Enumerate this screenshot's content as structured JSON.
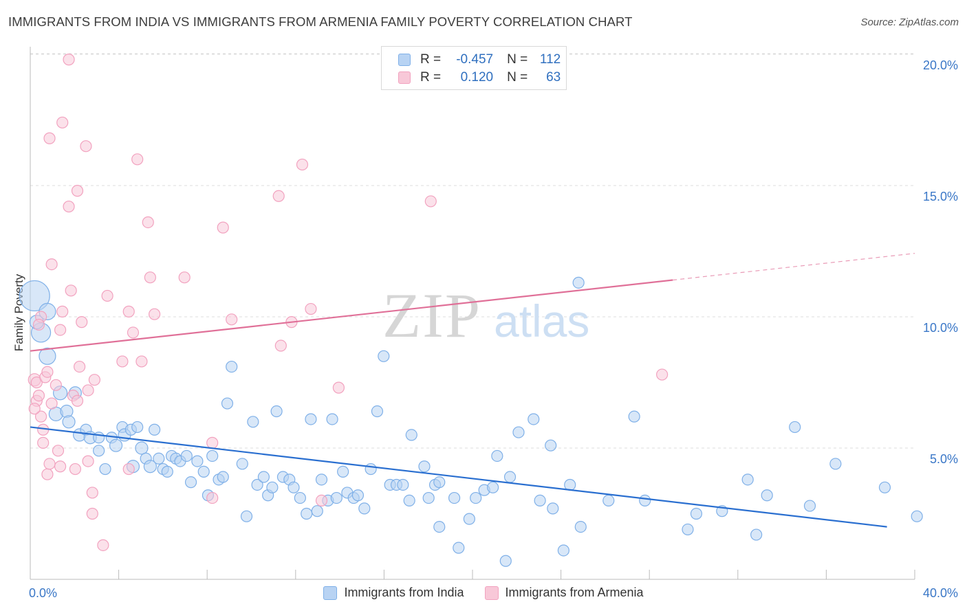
{
  "chart_data": {
    "type": "scatter",
    "title": "IMMIGRANTS FROM INDIA VS IMMIGRANTS FROM ARMENIA FAMILY POVERTY CORRELATION CHART",
    "source": "Source: ZipAtlas.com",
    "ylabel": "Family Poverty",
    "xlim": [
      0,
      40
    ],
    "ylim": [
      0,
      20.5
    ],
    "x_tick_labels": [
      "0.0%",
      "40.0%"
    ],
    "y_ticks": [
      {
        "value": 5,
        "label": "5.0%"
      },
      {
        "value": 10,
        "label": "10.0%"
      },
      {
        "value": 15,
        "label": "15.0%"
      },
      {
        "value": 20,
        "label": "20.0%"
      }
    ],
    "watermark": {
      "left": "ZIP",
      "right": "atlas"
    },
    "legend_top": {
      "rows": [
        {
          "r_label": "R =",
          "r_value": "-0.457",
          "n_label": "N =",
          "n_value": "112"
        },
        {
          "r_label": "R =",
          "r_value": "0.120",
          "n_label": "N =",
          "n_value": "63"
        }
      ]
    },
    "series": [
      {
        "name": "Immigrants from India",
        "color": "#7fb0e8",
        "fill": "#b8d3f3",
        "line_color": "#2a6fd0",
        "trend": {
          "x0": 0,
          "y0": 5.8,
          "x1": 40,
          "y1": 2.0
        },
        "points": [
          [
            0.2,
            10.8,
            22
          ],
          [
            0.5,
            9.4,
            14
          ],
          [
            0.8,
            10.2,
            12
          ],
          [
            0.3,
            9.8,
            10
          ],
          [
            0.8,
            8.5,
            12
          ],
          [
            1.2,
            6.3,
            10
          ],
          [
            1.4,
            7.1,
            10
          ],
          [
            1.7,
            6.4,
            9
          ],
          [
            1.8,
            6.0,
            9
          ],
          [
            2.1,
            7.1,
            9
          ],
          [
            2.3,
            5.5,
            9
          ],
          [
            2.6,
            5.7,
            8
          ],
          [
            2.8,
            5.4,
            9
          ],
          [
            3.2,
            5.4,
            8
          ],
          [
            3.2,
            4.9,
            8
          ],
          [
            3.5,
            4.2,
            8
          ],
          [
            3.8,
            5.4,
            8
          ],
          [
            4.0,
            5.1,
            9
          ],
          [
            4.3,
            5.8,
            8
          ],
          [
            4.4,
            5.5,
            9
          ],
          [
            4.7,
            5.7,
            8
          ],
          [
            4.8,
            4.3,
            9
          ],
          [
            5.0,
            5.8,
            8
          ],
          [
            5.2,
            5.0,
            9
          ],
          [
            5.4,
            4.6,
            8
          ],
          [
            5.6,
            4.3,
            9
          ],
          [
            5.8,
            5.7,
            8
          ],
          [
            6.0,
            4.6,
            8
          ],
          [
            6.2,
            4.2,
            8
          ],
          [
            6.4,
            4.1,
            8
          ],
          [
            6.6,
            4.7,
            8
          ],
          [
            6.8,
            4.6,
            8
          ],
          [
            7.0,
            4.5,
            8
          ],
          [
            7.3,
            4.7,
            8
          ],
          [
            7.5,
            3.7,
            8
          ],
          [
            7.8,
            4.5,
            8
          ],
          [
            8.1,
            4.1,
            8
          ],
          [
            8.3,
            3.2,
            8
          ],
          [
            8.5,
            4.7,
            8
          ],
          [
            8.8,
            3.8,
            8
          ],
          [
            9.0,
            3.9,
            8
          ],
          [
            9.2,
            6.7,
            8
          ],
          [
            9.4,
            8.1,
            8
          ],
          [
            9.9,
            4.4,
            8
          ],
          [
            10.1,
            2.4,
            8
          ],
          [
            10.4,
            6.0,
            8
          ],
          [
            10.6,
            3.6,
            8
          ],
          [
            10.9,
            3.9,
            8
          ],
          [
            11.1,
            3.2,
            8
          ],
          [
            11.3,
            3.5,
            8
          ],
          [
            11.5,
            6.4,
            8
          ],
          [
            11.8,
            3.9,
            8
          ],
          [
            12.1,
            3.8,
            8
          ],
          [
            12.3,
            3.5,
            8
          ],
          [
            12.6,
            3.1,
            8
          ],
          [
            12.9,
            2.5,
            8
          ],
          [
            13.1,
            6.1,
            8
          ],
          [
            13.4,
            2.6,
            8
          ],
          [
            13.6,
            3.8,
            8
          ],
          [
            13.9,
            3.0,
            8
          ],
          [
            14.1,
            6.1,
            8
          ],
          [
            14.3,
            3.1,
            8
          ],
          [
            14.6,
            4.1,
            8
          ],
          [
            14.8,
            3.3,
            8
          ],
          [
            15.1,
            3.1,
            8
          ],
          [
            15.3,
            3.2,
            8
          ],
          [
            15.6,
            2.7,
            8
          ],
          [
            15.9,
            4.2,
            8
          ],
          [
            16.2,
            6.4,
            8
          ],
          [
            16.5,
            8.5,
            8
          ],
          [
            16.8,
            3.6,
            8
          ],
          [
            17.1,
            3.6,
            8
          ],
          [
            17.4,
            3.6,
            8
          ],
          [
            17.7,
            3.0,
            8
          ],
          [
            17.8,
            5.5,
            8
          ],
          [
            18.4,
            4.3,
            8
          ],
          [
            18.6,
            3.1,
            8
          ],
          [
            18.9,
            3.6,
            8
          ],
          [
            19.1,
            3.7,
            8
          ],
          [
            19.1,
            2.0,
            8
          ],
          [
            19.8,
            3.1,
            8
          ],
          [
            20.0,
            1.2,
            8
          ],
          [
            20.5,
            2.3,
            8
          ],
          [
            20.8,
            3.1,
            8
          ],
          [
            21.2,
            3.4,
            8
          ],
          [
            21.6,
            3.5,
            8
          ],
          [
            21.8,
            4.7,
            8
          ],
          [
            22.2,
            0.7,
            8
          ],
          [
            22.4,
            3.9,
            8
          ],
          [
            22.8,
            5.6,
            8
          ],
          [
            23.5,
            6.1,
            8
          ],
          [
            23.8,
            3.0,
            8
          ],
          [
            24.3,
            5.1,
            8
          ],
          [
            24.4,
            2.7,
            8
          ],
          [
            24.9,
            1.1,
            8
          ],
          [
            25.2,
            3.6,
            8
          ],
          [
            25.6,
            11.3,
            8
          ],
          [
            25.7,
            2.0,
            8
          ],
          [
            27.0,
            3.0,
            8
          ],
          [
            28.2,
            6.2,
            8
          ],
          [
            28.7,
            3.0,
            8
          ],
          [
            30.7,
            1.9,
            8
          ],
          [
            31.1,
            2.5,
            8
          ],
          [
            32.3,
            2.6,
            8
          ],
          [
            33.5,
            3.8,
            8
          ],
          [
            34.4,
            3.2,
            8
          ],
          [
            33.9,
            1.7,
            8
          ],
          [
            35.7,
            5.8,
            8
          ],
          [
            36.4,
            2.8,
            8
          ],
          [
            37.6,
            4.4,
            8
          ],
          [
            39.9,
            3.5,
            8
          ],
          [
            41.4,
            2.4,
            8
          ]
        ]
      },
      {
        "name": "Immigrants from Armenia",
        "color": "#f2a2bf",
        "fill": "#f8c8d8",
        "line_color": "#e07098",
        "trend": {
          "x0": 0,
          "y0": 8.7,
          "x1": 30,
          "y1": 11.4
        },
        "points": [
          [
            0.2,
            7.6,
            9
          ],
          [
            0.3,
            7.5,
            8
          ],
          [
            0.3,
            6.8,
            8
          ],
          [
            0.4,
            7.0,
            8
          ],
          [
            0.5,
            6.2,
            8
          ],
          [
            0.6,
            5.7,
            8
          ],
          [
            0.6,
            5.2,
            8
          ],
          [
            0.7,
            7.7,
            8
          ],
          [
            0.8,
            7.9,
            8
          ],
          [
            0.8,
            4.0,
            8
          ],
          [
            0.9,
            4.4,
            8
          ],
          [
            1.0,
            6.7,
            8
          ],
          [
            0.9,
            16.8,
            8
          ],
          [
            1.0,
            12.0,
            8
          ],
          [
            1.2,
            7.4,
            8
          ],
          [
            1.3,
            4.9,
            8
          ],
          [
            1.4,
            9.5,
            8
          ],
          [
            1.5,
            10.2,
            8
          ],
          [
            1.5,
            17.4,
            8
          ],
          [
            1.8,
            14.2,
            8
          ],
          [
            1.9,
            11.0,
            8
          ],
          [
            2.0,
            7.0,
            8
          ],
          [
            2.1,
            4.2,
            8
          ],
          [
            2.2,
            14.8,
            8
          ],
          [
            2.3,
            8.1,
            8
          ],
          [
            2.4,
            9.8,
            8
          ],
          [
            2.6,
            16.5,
            8
          ],
          [
            2.7,
            7.2,
            8
          ],
          [
            2.7,
            4.5,
            8
          ],
          [
            2.9,
            3.3,
            8
          ],
          [
            2.9,
            2.5,
            8
          ],
          [
            3.4,
            1.3,
            8
          ],
          [
            3.6,
            10.8,
            8
          ],
          [
            4.3,
            8.3,
            8
          ],
          [
            4.6,
            10.2,
            8
          ],
          [
            4.6,
            4.2,
            8
          ],
          [
            4.8,
            9.4,
            8
          ],
          [
            5.0,
            16.0,
            8
          ],
          [
            5.2,
            8.3,
            8
          ],
          [
            5.5,
            13.6,
            8
          ],
          [
            5.6,
            11.5,
            8
          ],
          [
            5.8,
            10.1,
            8
          ],
          [
            7.2,
            11.5,
            8
          ],
          [
            8.5,
            3.1,
            8
          ],
          [
            8.5,
            5.2,
            8
          ],
          [
            9.0,
            13.4,
            8
          ],
          [
            9.4,
            9.9,
            8
          ],
          [
            11.6,
            14.6,
            8
          ],
          [
            11.7,
            8.9,
            8
          ],
          [
            12.2,
            9.8,
            8
          ],
          [
            12.7,
            15.8,
            8
          ],
          [
            13.1,
            10.3,
            8
          ],
          [
            13.6,
            3.0,
            8
          ],
          [
            14.4,
            7.3,
            8
          ],
          [
            18.7,
            14.4,
            8
          ],
          [
            29.5,
            7.8,
            8
          ],
          [
            0.5,
            10.0,
            8
          ],
          [
            0.4,
            9.7,
            8
          ],
          [
            1.4,
            4.3,
            8
          ],
          [
            2.2,
            6.8,
            8
          ],
          [
            3.0,
            7.6,
            8
          ],
          [
            1.8,
            19.8,
            8
          ],
          [
            0.2,
            6.5,
            8
          ]
        ]
      }
    ]
  }
}
